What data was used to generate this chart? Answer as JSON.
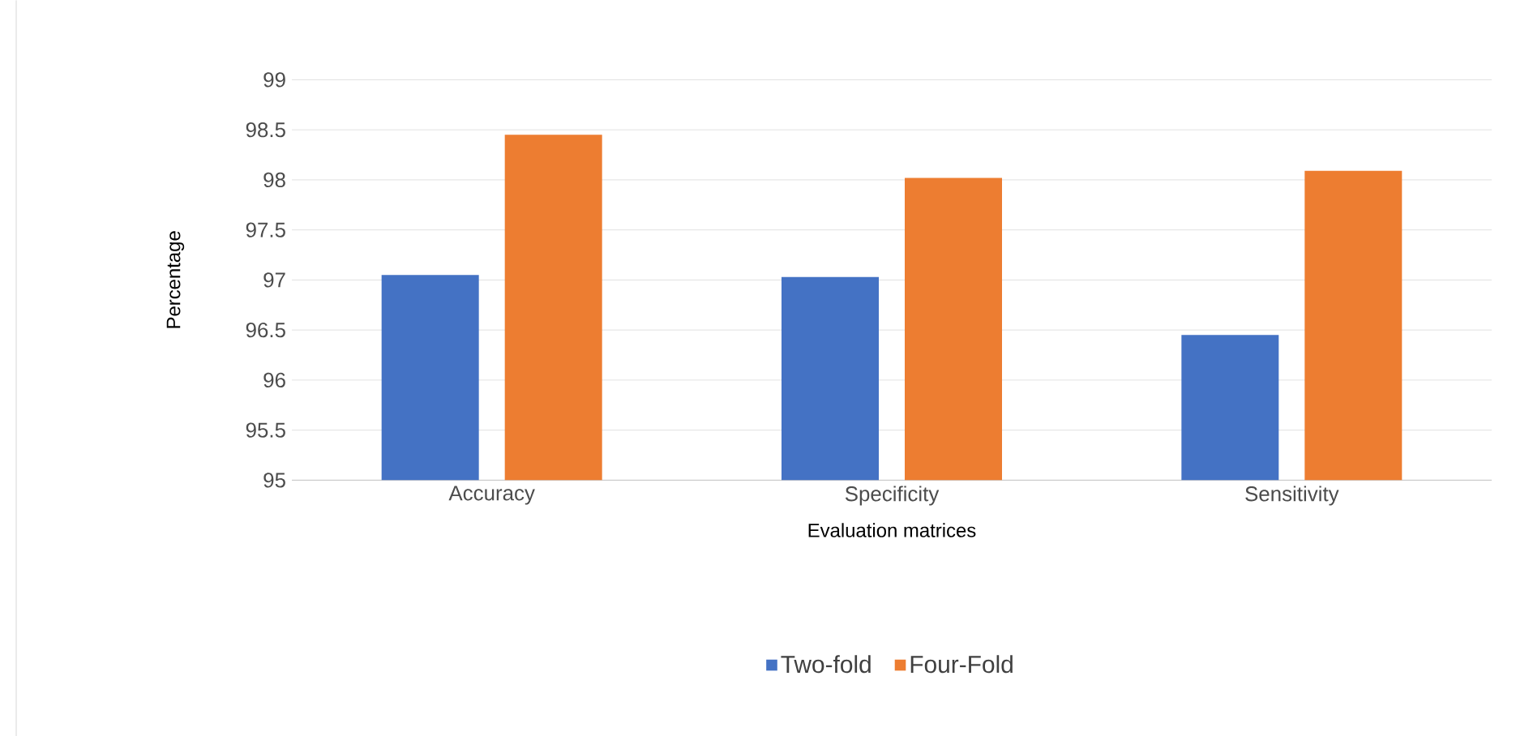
{
  "chart_data": {
    "type": "bar",
    "xlabel": "Evaluation matrices",
    "ylabel": "Percentage",
    "categories": [
      "Accuracy",
      "Specificity",
      "Sensitivity"
    ],
    "series": [
      {
        "name": "Two-fold",
        "color": "#4472c4",
        "values": [
          97.05,
          97.03,
          96.45
        ]
      },
      {
        "name": "Four-Fold",
        "color": "#ed7d31",
        "values": [
          98.45,
          98.02,
          98.09
        ]
      }
    ],
    "ylim": [
      95,
      99
    ],
    "yticks": [
      95,
      95.5,
      96,
      96.5,
      97,
      97.5,
      98,
      98.5,
      99
    ],
    "grid": "y",
    "legend": "bottom"
  }
}
